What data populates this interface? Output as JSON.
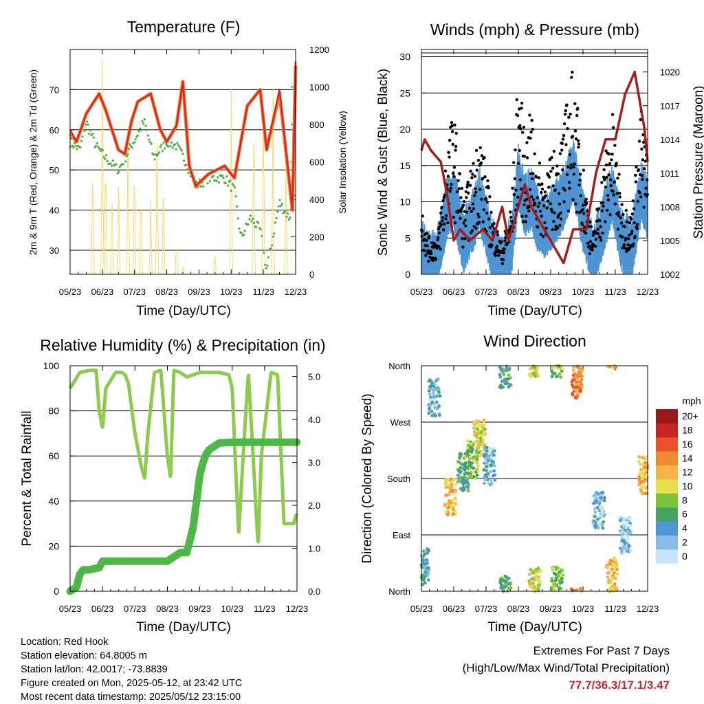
{
  "panels": {
    "temperature": {
      "title": "Temperature (F)",
      "ylabel_left": "2m & 9m T (Red, Orange) & 2m Td (Green)",
      "ylabel_right": "Solar Insolation (Yellow)",
      "xlabel": "Time (Day/UTC)"
    },
    "winds": {
      "title": "Winds (mph) & Pressure (mb)",
      "ylabel_left": "Sonic Wind & Gust (Blue, Black)",
      "ylabel_right": "Station Pressure (Maroon)",
      "xlabel": "Time (Day/UTC)"
    },
    "humidity": {
      "title": "Relative Humidity (%) & Precipitation (in)",
      "ylabel_left": "Percent & Total Rainfall",
      "xlabel": "Time (Day/UTC)"
    },
    "direction": {
      "title": "Wind Direction",
      "ylabel_left": "Direction (Colored By Speed)",
      "xlabel": "Time (Day/UTC)",
      "colorbar_title": "mph"
    }
  },
  "info": {
    "location": "Location: Red Hook",
    "elevation": "Station elevation: 64.8005 m",
    "latlon": "Station lat/lon: 42.0017; -73.8839",
    "created": "Figure created on Mon, 2025-05-12, at 23:42 UTC",
    "latest": "Most recent data timestamp: 2025/05/12 23:15:00"
  },
  "extremes": {
    "line1": "Extremes For Past 7 Days",
    "line2": "(High/Low/Max Wind/Total Precipitation)",
    "values": "77.7/36.3/17.1/3.47"
  },
  "colors": {
    "temp2m": "#d62728",
    "temp9m": "#f08030",
    "dewpoint": "#4aac3c",
    "solar": "#f5dc6e",
    "wind": "#4f95d3",
    "gust": "#000000",
    "pressure": "#a01e1e",
    "rh": "#8ccb4c",
    "precip": "#4db848",
    "extremes": "#c0282d"
  },
  "chart_data": [
    {
      "type": "line",
      "title": "Temperature (F)",
      "xlabel": "Time (Day/UTC)",
      "ylabel": "2m & 9m T (Red, Orange) & 2m Td (Green)",
      "ylabel_right": "Solar Insolation (Yellow)",
      "x_ticks": [
        "05/23",
        "06/23",
        "07/23",
        "08/23",
        "09/23",
        "10/23",
        "11/23",
        "12/23"
      ],
      "ylim": [
        24,
        80
      ],
      "yticks": [
        30,
        40,
        50,
        60,
        70
      ],
      "y2lim": [
        0,
        1200
      ],
      "y2ticks": [
        0,
        200,
        400,
        600,
        800,
        1000,
        1200
      ],
      "series": [
        {
          "name": "2m T",
          "axis": "left",
          "color": "#d62728",
          "x": [
            0,
            0.2,
            0.5,
            0.9,
            1.1,
            1.5,
            1.7,
            1.9,
            2.1,
            2.5,
            2.8,
            3.0,
            3.3,
            3.5,
            3.7,
            3.9,
            4.3,
            4.8,
            5.1,
            5.5,
            5.9,
            6.1,
            6.5,
            6.9,
            7.0
          ],
          "values": [
            60,
            57,
            64,
            69,
            65,
            55,
            54,
            62,
            67,
            69,
            60,
            57,
            61,
            72,
            51,
            46,
            49,
            51,
            48,
            66,
            70,
            55,
            70,
            40,
            77
          ]
        },
        {
          "name": "9m T",
          "axis": "left",
          "color": "#f08030",
          "x": [
            0,
            0.2,
            0.5,
            0.9,
            1.1,
            1.5,
            1.7,
            1.9,
            2.1,
            2.5,
            2.8,
            3.0,
            3.3,
            3.5,
            3.7,
            3.9,
            4.3,
            4.8,
            5.1,
            5.5,
            5.9,
            6.1,
            6.5,
            6.9,
            7.0
          ],
          "values": [
            59,
            57,
            64,
            69,
            65,
            55,
            54,
            62,
            67,
            69,
            60,
            57,
            61,
            72,
            51,
            46,
            49,
            51,
            48,
            66,
            70,
            55,
            69,
            40,
            76
          ]
        },
        {
          "name": "2m Td",
          "axis": "left",
          "color": "#4aac3c",
          "x": [
            0,
            0.3,
            0.5,
            0.8,
            1.1,
            1.5,
            1.9,
            2.3,
            2.6,
            3.0,
            3.3,
            3.6,
            3.9,
            4.3,
            4.8,
            5.1,
            5.3,
            5.6,
            5.9,
            6.1,
            6.5,
            6.8,
            7.0
          ],
          "values": [
            57,
            55,
            62,
            56,
            53,
            50,
            56,
            62,
            53,
            57,
            56,
            52,
            46,
            48,
            48,
            45,
            33,
            38,
            35,
            25,
            42,
            38,
            44
          ]
        },
        {
          "name": "Solar Insolation",
          "axis": "right",
          "color": "#f5dc6e",
          "peaks_x": [
            0.7,
            1.0,
            1.1,
            1.3,
            1.5,
            1.8,
            2.0,
            2.2,
            2.5,
            2.7,
            2.9,
            3.3,
            3.5,
            4.5,
            5.0,
            5.7,
            6.0,
            6.3,
            6.7
          ],
          "peaks": [
            600,
            1150,
            700,
            500,
            560,
            900,
            650,
            500,
            420,
            800,
            520,
            180,
            50,
            100,
            1050,
            900,
            1050,
            1000,
            600
          ]
        }
      ]
    },
    {
      "type": "scatter",
      "title": "Winds (mph) & Pressure (mb)",
      "xlabel": "Time (Day/UTC)",
      "ylabel": "Sonic Wind & Gust (Blue, Black)",
      "ylabel_right": "Station Pressure (Maroon)",
      "x_ticks": [
        "05/23",
        "06/23",
        "07/23",
        "08/23",
        "09/23",
        "10/23",
        "11/23",
        "12/23"
      ],
      "ylim": [
        0,
        31
      ],
      "yticks": [
        0,
        5,
        10,
        15,
        20,
        25,
        30
      ],
      "y2lim": [
        1002,
        1022
      ],
      "y2ticks": [
        1002,
        1005,
        1008,
        1011,
        1014,
        1017,
        1020
      ],
      "series": [
        {
          "name": "Gust",
          "color": "#000000",
          "x": [
            0,
            0.2,
            0.5,
            0.8,
            1.0,
            1.3,
            1.6,
            1.8,
            2.2,
            2.5,
            2.8,
            3.0,
            3.2,
            3.4,
            3.6,
            3.8,
            4.3,
            4.7,
            5.0,
            5.3,
            5.6,
            5.9,
            6.2,
            6.5,
            6.8,
            7.0
          ],
          "values": [
            10,
            5,
            5,
            18,
            22,
            10,
            15,
            20,
            8,
            4,
            10,
            28,
            18,
            22,
            15,
            14,
            18,
            28,
            15,
            5,
            14,
            22,
            10,
            8,
            22,
            15
          ]
        },
        {
          "name": "Wind",
          "color": "#4f95d3",
          "x": [
            0,
            0.2,
            0.5,
            0.8,
            1.0,
            1.3,
            1.6,
            1.8,
            2.2,
            2.5,
            2.8,
            3.0,
            3.2,
            3.4,
            3.6,
            3.8,
            4.3,
            4.7,
            5.0,
            5.3,
            5.6,
            5.9,
            6.2,
            6.5,
            6.8,
            7.0
          ],
          "values": [
            4,
            2,
            3,
            10,
            11,
            5,
            8,
            11,
            4,
            1,
            5,
            14,
            10,
            11,
            8,
            7,
            10,
            15,
            8,
            3,
            7,
            12,
            5,
            4,
            12,
            9
          ]
        },
        {
          "name": "Station Pressure",
          "axis": "right",
          "color": "#a01e1e",
          "x": [
            0,
            0.1,
            0.3,
            0.6,
            0.8,
            1.0,
            1.2,
            1.5,
            1.9,
            2.2,
            2.5,
            2.7,
            3.0,
            3.2,
            3.4,
            3.6,
            3.8,
            4.0,
            4.4,
            4.7,
            5.1,
            5.4,
            5.7,
            6.0,
            6.3,
            6.6,
            6.9,
            7.0
          ],
          "values": [
            1013,
            1014,
            1013,
            1012,
            1009,
            1005,
            1006,
            1005,
            1006,
            1005,
            1008,
            1005,
            1008,
            1010,
            1008,
            1007,
            1006,
            1005,
            1003,
            1006,
            1006,
            1011,
            1014,
            1014,
            1018,
            1020,
            1015,
            1012
          ]
        }
      ]
    },
    {
      "type": "line",
      "title": "Relative Humidity (%) & Precipitation (in)",
      "xlabel": "Time (Day/UTC)",
      "ylabel": "Percent & Total Rainfall",
      "x_ticks": [
        "05/23",
        "06/23",
        "07/23",
        "08/23",
        "09/23",
        "10/23",
        "11/23",
        "12/23"
      ],
      "ylim": [
        0,
        100
      ],
      "yticks": [
        0,
        20,
        40,
        60,
        80,
        100
      ],
      "y2lim": [
        0.0,
        5.25
      ],
      "y2ticks": [
        0.0,
        1.0,
        2.0,
        3.0,
        4.0,
        5.0
      ],
      "series": [
        {
          "name": "Relative Humidity",
          "axis": "left",
          "color": "#8ccb4c",
          "x": [
            0,
            0.3,
            0.6,
            0.8,
            0.9,
            1.0,
            1.1,
            1.4,
            1.6,
            1.7,
            1.8,
            2.0,
            2.2,
            2.3,
            2.4,
            2.6,
            2.8,
            3.0,
            3.1,
            3.2,
            3.4,
            3.6,
            4.0,
            4.6,
            4.9,
            5.0,
            5.2,
            5.4,
            5.5,
            5.8,
            5.9,
            6.2,
            6.4,
            6.6,
            6.9,
            7.0
          ],
          "values": [
            90,
            97,
            98,
            98,
            80,
            72,
            90,
            97,
            97,
            96,
            92,
            70,
            55,
            50,
            70,
            97,
            98,
            60,
            50,
            98,
            97,
            95,
            97,
            97,
            96,
            90,
            25,
            75,
            97,
            20,
            60,
            97,
            96,
            30,
            30,
            35
          ]
        },
        {
          "name": "Total Rainfall",
          "axis": "right",
          "color": "#4db848",
          "x": [
            0,
            0.2,
            0.3,
            0.4,
            0.6,
            0.9,
            1.0,
            1.2,
            2.0,
            3.0,
            3.4,
            3.6,
            3.8,
            4.0,
            4.1,
            4.2,
            4.3,
            4.6,
            5.0,
            7.0
          ],
          "values": [
            0.0,
            0.1,
            0.4,
            0.5,
            0.5,
            0.55,
            0.7,
            0.7,
            0.7,
            0.7,
            0.9,
            0.9,
            1.5,
            2.7,
            3.0,
            3.2,
            3.3,
            3.45,
            3.47,
            3.47
          ]
        }
      ]
    },
    {
      "type": "scatter",
      "title": "Wind Direction",
      "xlabel": "Time (Day/UTC)",
      "ylabel": "Direction (Colored By Speed)",
      "x_ticks": [
        "05/23",
        "06/23",
        "07/23",
        "08/23",
        "09/23",
        "10/23",
        "11/23",
        "12/23"
      ],
      "ylim": [
        0,
        360
      ],
      "yticks": [
        "North",
        "East",
        "South",
        "West",
        "North"
      ],
      "colorbar_title": "mph",
      "colorbar_labels": [
        "0",
        "2",
        "4",
        "6",
        "8",
        "10",
        "12",
        "14",
        "16",
        "18",
        "20+"
      ],
      "colorbar_colors": [
        "#c6e4f8",
        "#85bde8",
        "#4f95d3",
        "#46a260",
        "#7cc43c",
        "#e6e04a",
        "#f8b24a",
        "#f08a30",
        "#e8522a",
        "#c82424",
        "#961818"
      ],
      "clusters": [
        {
          "x": 0.4,
          "dir": 310,
          "speed": 3
        },
        {
          "x": 0.05,
          "dir": 40,
          "speed": 4
        },
        {
          "x": 0.9,
          "dir": 150,
          "speed": 12
        },
        {
          "x": 1.3,
          "dir": 190,
          "speed": 6
        },
        {
          "x": 1.6,
          "dir": 210,
          "speed": 8
        },
        {
          "x": 1.8,
          "dir": 245,
          "speed": 10
        },
        {
          "x": 2.1,
          "dir": 200,
          "speed": 3
        },
        {
          "x": 2.6,
          "dir": 355,
          "speed": 6
        },
        {
          "x": 3.5,
          "dir": 10,
          "speed": 10
        },
        {
          "x": 4.2,
          "dir": 10,
          "speed": 8
        },
        {
          "x": 4.8,
          "dir": 335,
          "speed": 14
        },
        {
          "x": 5.5,
          "dir": 130,
          "speed": 3
        },
        {
          "x": 5.9,
          "dir": 25,
          "speed": 12
        },
        {
          "x": 6.3,
          "dir": 90,
          "speed": 2
        },
        {
          "x": 6.9,
          "dir": 185,
          "speed": 12
        }
      ]
    }
  ]
}
